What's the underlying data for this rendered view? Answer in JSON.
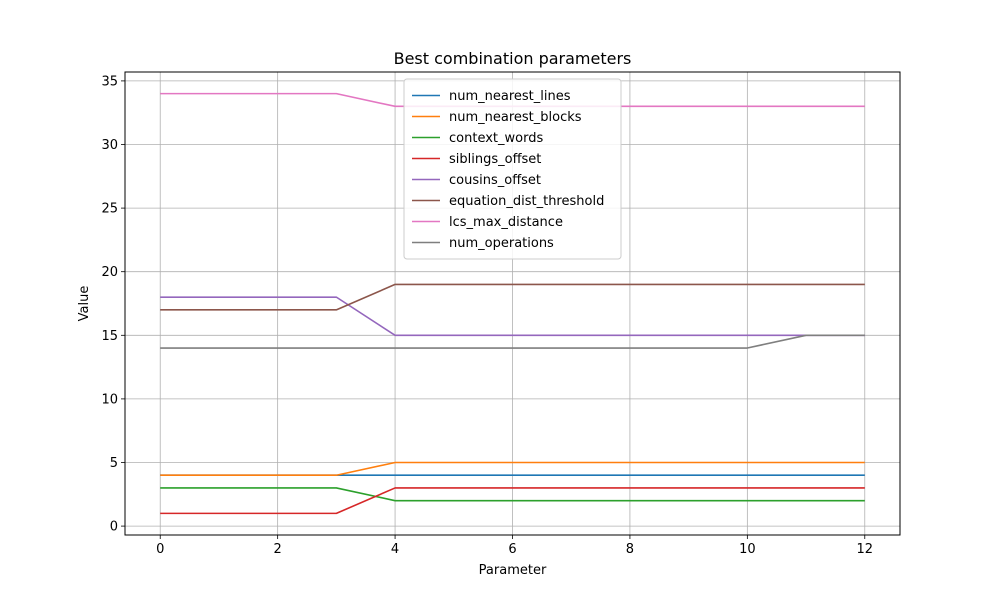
{
  "chart_data": {
    "type": "line",
    "title": "Best combination parameters",
    "xlabel": "Parameter",
    "ylabel": "Value",
    "xlim": [
      -0.6,
      12.6
    ],
    "ylim": [
      -0.7,
      35.7
    ],
    "xticks": [
      0,
      2,
      4,
      6,
      8,
      10,
      12
    ],
    "yticks": [
      0,
      5,
      10,
      15,
      20,
      25,
      30,
      35
    ],
    "grid": true,
    "legend_position": "upper-center",
    "x": [
      0,
      1,
      2,
      3,
      4,
      5,
      6,
      7,
      8,
      9,
      10,
      11,
      12
    ],
    "series": [
      {
        "name": "num_nearest_lines",
        "color": "#1f77b4",
        "values": [
          4,
          4,
          4,
          4,
          4,
          4,
          4,
          4,
          4,
          4,
          4,
          4,
          4
        ]
      },
      {
        "name": "num_nearest_blocks",
        "color": "#ff7f0e",
        "values": [
          4,
          4,
          4,
          4,
          5,
          5,
          5,
          5,
          5,
          5,
          5,
          5,
          5
        ]
      },
      {
        "name": "context_words",
        "color": "#2ca02c",
        "values": [
          3,
          3,
          3,
          3,
          2,
          2,
          2,
          2,
          2,
          2,
          2,
          2,
          2
        ]
      },
      {
        "name": "siblings_offset",
        "color": "#d62728",
        "values": [
          1,
          1,
          1,
          1,
          3,
          3,
          3,
          3,
          3,
          3,
          3,
          3,
          3
        ]
      },
      {
        "name": "cousins_offset",
        "color": "#9467bd",
        "values": [
          18,
          18,
          18,
          18,
          15,
          15,
          15,
          15,
          15,
          15,
          15,
          15,
          15
        ]
      },
      {
        "name": "equation_dist_threshold",
        "color": "#8c564b",
        "values": [
          17,
          17,
          17,
          17,
          19,
          19,
          19,
          19,
          19,
          19,
          19,
          19,
          19
        ]
      },
      {
        "name": "lcs_max_distance",
        "color": "#e377c2",
        "values": [
          34,
          34,
          34,
          34,
          33,
          33,
          33,
          33,
          33,
          33,
          33,
          33,
          33
        ]
      },
      {
        "name": "num_operations",
        "color": "#7f7f7f",
        "values": [
          14,
          14,
          14,
          14,
          14,
          14,
          14,
          14,
          14,
          14,
          14,
          15,
          15
        ]
      }
    ]
  }
}
